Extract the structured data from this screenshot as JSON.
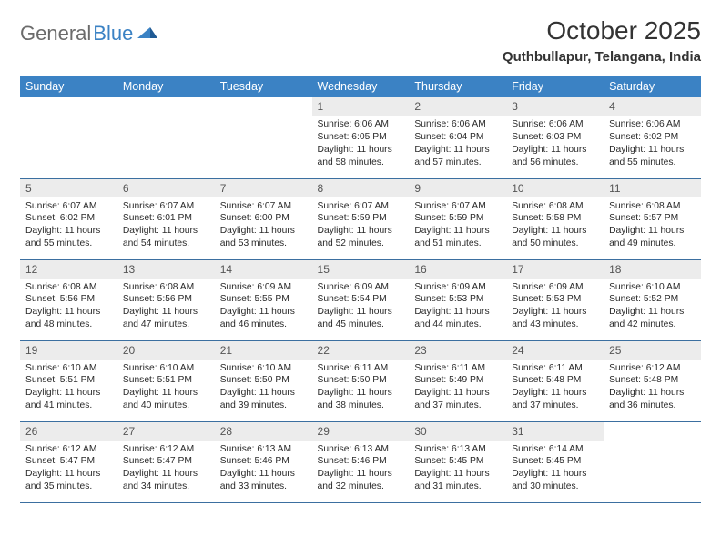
{
  "brand": {
    "name1": "General",
    "name2": "Blue"
  },
  "title": "October 2025",
  "location": "Quthbullapur, Telangana, India",
  "colors": {
    "header_bg": "#3b82c4",
    "header_text": "#ffffff",
    "daynum_bg": "#ececec",
    "rule": "#3b6fa0",
    "text": "#2a2a2a"
  },
  "weekdays": [
    "Sunday",
    "Monday",
    "Tuesday",
    "Wednesday",
    "Thursday",
    "Friday",
    "Saturday"
  ],
  "weeks": [
    [
      {
        "n": "",
        "sr": "",
        "ss": "",
        "dl": ""
      },
      {
        "n": "",
        "sr": "",
        "ss": "",
        "dl": ""
      },
      {
        "n": "",
        "sr": "",
        "ss": "",
        "dl": ""
      },
      {
        "n": "1",
        "sr": "Sunrise: 6:06 AM",
        "ss": "Sunset: 6:05 PM",
        "dl": "Daylight: 11 hours and 58 minutes."
      },
      {
        "n": "2",
        "sr": "Sunrise: 6:06 AM",
        "ss": "Sunset: 6:04 PM",
        "dl": "Daylight: 11 hours and 57 minutes."
      },
      {
        "n": "3",
        "sr": "Sunrise: 6:06 AM",
        "ss": "Sunset: 6:03 PM",
        "dl": "Daylight: 11 hours and 56 minutes."
      },
      {
        "n": "4",
        "sr": "Sunrise: 6:06 AM",
        "ss": "Sunset: 6:02 PM",
        "dl": "Daylight: 11 hours and 55 minutes."
      }
    ],
    [
      {
        "n": "5",
        "sr": "Sunrise: 6:07 AM",
        "ss": "Sunset: 6:02 PM",
        "dl": "Daylight: 11 hours and 55 minutes."
      },
      {
        "n": "6",
        "sr": "Sunrise: 6:07 AM",
        "ss": "Sunset: 6:01 PM",
        "dl": "Daylight: 11 hours and 54 minutes."
      },
      {
        "n": "7",
        "sr": "Sunrise: 6:07 AM",
        "ss": "Sunset: 6:00 PM",
        "dl": "Daylight: 11 hours and 53 minutes."
      },
      {
        "n": "8",
        "sr": "Sunrise: 6:07 AM",
        "ss": "Sunset: 5:59 PM",
        "dl": "Daylight: 11 hours and 52 minutes."
      },
      {
        "n": "9",
        "sr": "Sunrise: 6:07 AM",
        "ss": "Sunset: 5:59 PM",
        "dl": "Daylight: 11 hours and 51 minutes."
      },
      {
        "n": "10",
        "sr": "Sunrise: 6:08 AM",
        "ss": "Sunset: 5:58 PM",
        "dl": "Daylight: 11 hours and 50 minutes."
      },
      {
        "n": "11",
        "sr": "Sunrise: 6:08 AM",
        "ss": "Sunset: 5:57 PM",
        "dl": "Daylight: 11 hours and 49 minutes."
      }
    ],
    [
      {
        "n": "12",
        "sr": "Sunrise: 6:08 AM",
        "ss": "Sunset: 5:56 PM",
        "dl": "Daylight: 11 hours and 48 minutes."
      },
      {
        "n": "13",
        "sr": "Sunrise: 6:08 AM",
        "ss": "Sunset: 5:56 PM",
        "dl": "Daylight: 11 hours and 47 minutes."
      },
      {
        "n": "14",
        "sr": "Sunrise: 6:09 AM",
        "ss": "Sunset: 5:55 PM",
        "dl": "Daylight: 11 hours and 46 minutes."
      },
      {
        "n": "15",
        "sr": "Sunrise: 6:09 AM",
        "ss": "Sunset: 5:54 PM",
        "dl": "Daylight: 11 hours and 45 minutes."
      },
      {
        "n": "16",
        "sr": "Sunrise: 6:09 AM",
        "ss": "Sunset: 5:53 PM",
        "dl": "Daylight: 11 hours and 44 minutes."
      },
      {
        "n": "17",
        "sr": "Sunrise: 6:09 AM",
        "ss": "Sunset: 5:53 PM",
        "dl": "Daylight: 11 hours and 43 minutes."
      },
      {
        "n": "18",
        "sr": "Sunrise: 6:10 AM",
        "ss": "Sunset: 5:52 PM",
        "dl": "Daylight: 11 hours and 42 minutes."
      }
    ],
    [
      {
        "n": "19",
        "sr": "Sunrise: 6:10 AM",
        "ss": "Sunset: 5:51 PM",
        "dl": "Daylight: 11 hours and 41 minutes."
      },
      {
        "n": "20",
        "sr": "Sunrise: 6:10 AM",
        "ss": "Sunset: 5:51 PM",
        "dl": "Daylight: 11 hours and 40 minutes."
      },
      {
        "n": "21",
        "sr": "Sunrise: 6:10 AM",
        "ss": "Sunset: 5:50 PM",
        "dl": "Daylight: 11 hours and 39 minutes."
      },
      {
        "n": "22",
        "sr": "Sunrise: 6:11 AM",
        "ss": "Sunset: 5:50 PM",
        "dl": "Daylight: 11 hours and 38 minutes."
      },
      {
        "n": "23",
        "sr": "Sunrise: 6:11 AM",
        "ss": "Sunset: 5:49 PM",
        "dl": "Daylight: 11 hours and 37 minutes."
      },
      {
        "n": "24",
        "sr": "Sunrise: 6:11 AM",
        "ss": "Sunset: 5:48 PM",
        "dl": "Daylight: 11 hours and 37 minutes."
      },
      {
        "n": "25",
        "sr": "Sunrise: 6:12 AM",
        "ss": "Sunset: 5:48 PM",
        "dl": "Daylight: 11 hours and 36 minutes."
      }
    ],
    [
      {
        "n": "26",
        "sr": "Sunrise: 6:12 AM",
        "ss": "Sunset: 5:47 PM",
        "dl": "Daylight: 11 hours and 35 minutes."
      },
      {
        "n": "27",
        "sr": "Sunrise: 6:12 AM",
        "ss": "Sunset: 5:47 PM",
        "dl": "Daylight: 11 hours and 34 minutes."
      },
      {
        "n": "28",
        "sr": "Sunrise: 6:13 AM",
        "ss": "Sunset: 5:46 PM",
        "dl": "Daylight: 11 hours and 33 minutes."
      },
      {
        "n": "29",
        "sr": "Sunrise: 6:13 AM",
        "ss": "Sunset: 5:46 PM",
        "dl": "Daylight: 11 hours and 32 minutes."
      },
      {
        "n": "30",
        "sr": "Sunrise: 6:13 AM",
        "ss": "Sunset: 5:45 PM",
        "dl": "Daylight: 11 hours and 31 minutes."
      },
      {
        "n": "31",
        "sr": "Sunrise: 6:14 AM",
        "ss": "Sunset: 5:45 PM",
        "dl": "Daylight: 11 hours and 30 minutes."
      },
      {
        "n": "",
        "sr": "",
        "ss": "",
        "dl": ""
      }
    ]
  ]
}
